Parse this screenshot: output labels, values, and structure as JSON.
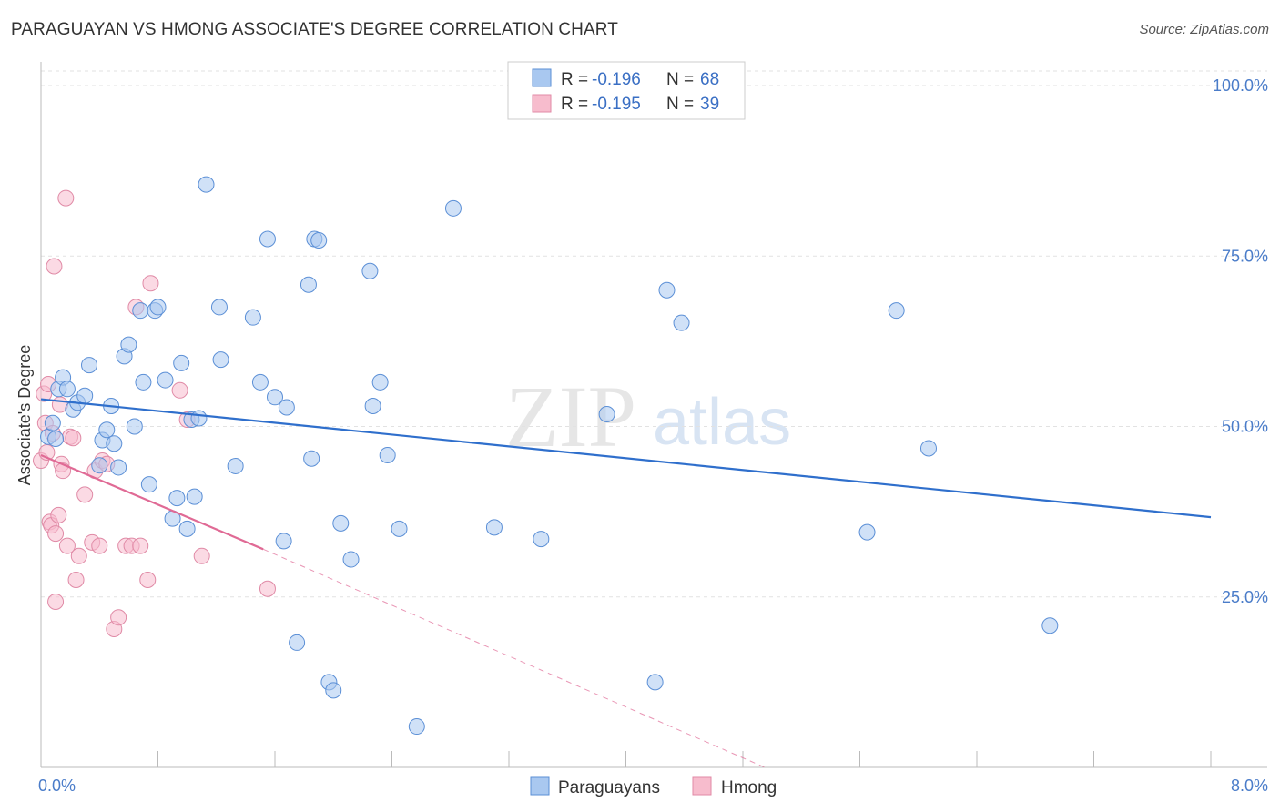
{
  "header": {
    "title": "PARAGUAYAN VS HMONG ASSOCIATE'S DEGREE CORRELATION CHART",
    "source": "Source: ZipAtlas.com"
  },
  "watermark": {
    "zip": "ZIP",
    "atlas": "atlas"
  },
  "legend": {
    "r_label": "R =",
    "n_label": "N =",
    "rows": [
      {
        "r": "-0.196",
        "n": "68",
        "color": "#a9c8f0",
        "stroke": "#5b8fd6"
      },
      {
        "r": "-0.195",
        "n": "39",
        "color": "#f7bccd",
        "stroke": "#e08aa6"
      }
    ]
  },
  "bottom_legend": [
    {
      "label": "Paraguayans",
      "color": "#a9c8f0",
      "stroke": "#5b8fd6"
    },
    {
      "label": "Hmong",
      "color": "#f7bccd",
      "stroke": "#e08aa6"
    }
  ],
  "chart_data": {
    "type": "scatter",
    "title": "PARAGUAYAN VS HMONG ASSOCIATE'S DEGREE CORRELATION CHART",
    "xlabel": "",
    "ylabel": "Associate's Degree",
    "xlim": [
      0,
      8
    ],
    "ylim": [
      0,
      100
    ],
    "x_tick_labels": [
      "0.0%",
      "8.0%"
    ],
    "y_ticks": [
      25,
      50,
      75,
      100
    ],
    "y_tick_labels": [
      "25.0%",
      "50.0%",
      "75.0%",
      "100.0%"
    ],
    "grid": true,
    "series": [
      {
        "name": "Paraguayans",
        "color": "#a9c8f0",
        "stroke": "#5b8fd6",
        "trend": {
          "x0": 0.0,
          "y0": 54.0,
          "x1": 8.0,
          "y1": 36.7,
          "color": "#2f6fcc"
        },
        "points": [
          [
            0.05,
            48.5
          ],
          [
            0.08,
            50.5
          ],
          [
            0.1,
            48.2
          ],
          [
            0.12,
            55.5
          ],
          [
            0.15,
            57.2
          ],
          [
            0.18,
            55.5
          ],
          [
            0.22,
            52.5
          ],
          [
            0.25,
            53.5
          ],
          [
            0.3,
            54.5
          ],
          [
            0.33,
            59.0
          ],
          [
            0.4,
            44.3
          ],
          [
            0.42,
            48.0
          ],
          [
            0.45,
            49.5
          ],
          [
            0.48,
            53.0
          ],
          [
            0.5,
            47.5
          ],
          [
            0.53,
            44.0
          ],
          [
            0.57,
            60.3
          ],
          [
            0.6,
            62.0
          ],
          [
            0.64,
            50.0
          ],
          [
            0.68,
            67.0
          ],
          [
            0.7,
            56.5
          ],
          [
            0.74,
            41.5
          ],
          [
            0.78,
            67.0
          ],
          [
            0.8,
            67.5
          ],
          [
            0.85,
            56.8
          ],
          [
            0.9,
            36.5
          ],
          [
            0.93,
            39.5
          ],
          [
            0.96,
            59.3
          ],
          [
            1.0,
            35.0
          ],
          [
            1.03,
            51.0
          ],
          [
            1.05,
            39.7
          ],
          [
            1.08,
            51.2
          ],
          [
            1.13,
            85.5
          ],
          [
            1.22,
            67.5
          ],
          [
            1.23,
            59.8
          ],
          [
            1.33,
            44.2
          ],
          [
            1.45,
            66.0
          ],
          [
            1.5,
            56.5
          ],
          [
            1.55,
            77.5
          ],
          [
            1.6,
            54.3
          ],
          [
            1.66,
            33.2
          ],
          [
            1.68,
            52.8
          ],
          [
            1.75,
            18.3
          ],
          [
            1.83,
            70.8
          ],
          [
            1.85,
            45.3
          ],
          [
            1.87,
            77.5
          ],
          [
            1.9,
            77.3
          ],
          [
            1.97,
            12.5
          ],
          [
            2.0,
            11.3
          ],
          [
            2.05,
            35.8
          ],
          [
            2.12,
            30.5
          ],
          [
            2.25,
            72.8
          ],
          [
            2.27,
            53.0
          ],
          [
            2.32,
            56.5
          ],
          [
            2.37,
            45.8
          ],
          [
            2.45,
            35.0
          ],
          [
            2.57,
            6.0
          ],
          [
            2.82,
            82.0
          ],
          [
            3.1,
            35.2
          ],
          [
            3.42,
            33.5
          ],
          [
            3.87,
            51.8
          ],
          [
            4.2,
            12.5
          ],
          [
            4.28,
            70.0
          ],
          [
            4.38,
            65.2
          ],
          [
            5.65,
            34.5
          ],
          [
            5.85,
            67.0
          ],
          [
            6.07,
            46.8
          ],
          [
            6.9,
            20.8
          ]
        ]
      },
      {
        "name": "Hmong",
        "color": "#f7bccd",
        "stroke": "#e08aa6",
        "trend": {
          "x0": 0.0,
          "y0": 45.8,
          "x1": 1.52,
          "y1": 32.0,
          "dashed_x1": 4.95,
          "dashed_y1": 0.0,
          "color": "#e06a95"
        },
        "points": [
          [
            0.0,
            45.0
          ],
          [
            0.02,
            54.8
          ],
          [
            0.03,
            50.5
          ],
          [
            0.04,
            46.2
          ],
          [
            0.05,
            56.2
          ],
          [
            0.06,
            36.0
          ],
          [
            0.07,
            35.5
          ],
          [
            0.08,
            49.0
          ],
          [
            0.09,
            73.5
          ],
          [
            0.1,
            34.3
          ],
          [
            0.1,
            24.3
          ],
          [
            0.12,
            37.0
          ],
          [
            0.13,
            53.2
          ],
          [
            0.14,
            44.5
          ],
          [
            0.15,
            43.5
          ],
          [
            0.17,
            83.5
          ],
          [
            0.18,
            32.5
          ],
          [
            0.2,
            48.5
          ],
          [
            0.22,
            48.3
          ],
          [
            0.24,
            27.5
          ],
          [
            0.26,
            31.0
          ],
          [
            0.3,
            40.0
          ],
          [
            0.35,
            33.0
          ],
          [
            0.37,
            43.5
          ],
          [
            0.4,
            32.5
          ],
          [
            0.42,
            45.0
          ],
          [
            0.45,
            44.5
          ],
          [
            0.5,
            20.3
          ],
          [
            0.53,
            22.0
          ],
          [
            0.58,
            32.5
          ],
          [
            0.62,
            32.5
          ],
          [
            0.65,
            67.5
          ],
          [
            0.68,
            32.5
          ],
          [
            0.73,
            27.5
          ],
          [
            0.75,
            71.0
          ],
          [
            0.95,
            55.3
          ],
          [
            1.0,
            51.0
          ],
          [
            1.1,
            31.0
          ],
          [
            1.55,
            26.2
          ]
        ]
      }
    ]
  }
}
